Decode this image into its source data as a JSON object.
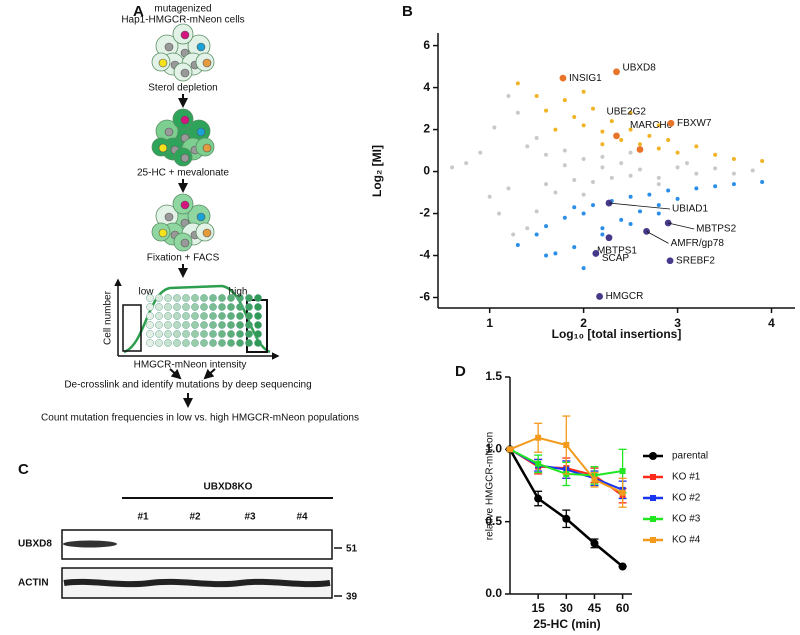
{
  "panel_labels": [
    "A",
    "B",
    "C",
    "D"
  ],
  "screen_flow": {
    "title_lines": [
      "mutagenized",
      "Hap1-HMGCR-mNeon cells"
    ],
    "steps": [
      "Sterol depletion",
      "25-HC + mevalonate",
      "Fixation + FACS"
    ],
    "histogram": {
      "y_label": "Cell number",
      "x_label": "HMGCR-mNeon intensity",
      "low": "low",
      "high": "high"
    },
    "after_steps": [
      "De-crosslink and identify mutations by deep sequencing",
      "Count mutation frequencies in low vs. high HMGCR-mNeon populations"
    ]
  },
  "blot": {
    "group_label": "UBXD8KO",
    "lanes": [
      "#1",
      "#2",
      "#3",
      "#4"
    ],
    "rows": [
      {
        "label": "UBXD8",
        "marker": 51
      },
      {
        "label": "ACTIN",
        "marker": 39
      }
    ]
  },
  "chart_data": [
    {
      "type": "scatter",
      "xlabel": "Log₁₀ [total insertions]",
      "ylabel": "Log₂ [MI]",
      "xlim": [
        0.45,
        4.25
      ],
      "ylim": [
        -6.5,
        6.6
      ],
      "xticks": [
        1,
        2,
        3,
        4
      ],
      "yticks": [
        -6,
        -4,
        -2,
        0,
        2,
        4,
        6
      ],
      "series": [
        {
          "color": "#c9c9c9",
          "x": [
            0.6,
            0.75,
            0.9,
            1.0,
            1.05,
            1.1,
            1.2,
            1.25,
            1.3,
            1.4,
            1.5,
            1.5,
            1.6,
            1.7,
            1.8,
            1.9,
            2.0,
            2.1,
            2.2,
            2.3,
            2.4,
            2.5,
            2.6,
            2.8,
            3.0,
            3.2,
            3.4,
            3.6,
            3.8,
            1.2,
            1.4,
            1.6,
            1.8,
            2.0,
            2.2,
            2.5,
            2.8,
            3.1
          ],
          "values": [
            0.2,
            0.4,
            0.9,
            -1.2,
            2.1,
            -2.0,
            3.6,
            -3.0,
            2.8,
            -2.7,
            1.6,
            -1.9,
            0.8,
            -1.0,
            0.3,
            -0.4,
            0.6,
            -0.5,
            0.2,
            -0.3,
            0.4,
            -0.2,
            0.1,
            -0.3,
            0.2,
            -0.1,
            0.15,
            -0.1,
            0.05,
            -0.8,
            1.2,
            -0.6,
            1.0,
            -1.1,
            0.7,
            0.9,
            -0.6,
            0.4
          ]
        },
        {
          "color": "#f0b323",
          "x": [
            1.3,
            1.5,
            1.6,
            1.8,
            1.9,
            2.0,
            2.1,
            2.2,
            2.3,
            2.4,
            2.5,
            2.6,
            2.7,
            2.8,
            2.9,
            3.0,
            3.2,
            3.4,
            3.6,
            3.9,
            1.7,
            2.0,
            2.2,
            2.5,
            2.8
          ],
          "values": [
            4.2,
            3.6,
            2.9,
            3.4,
            2.6,
            2.2,
            3.0,
            1.9,
            2.4,
            1.5,
            2.0,
            1.3,
            1.7,
            1.1,
            1.5,
            0.9,
            1.2,
            0.8,
            0.6,
            0.5,
            2.0,
            3.8,
            1.3,
            2.8,
            2.2
          ]
        },
        {
          "color": "#2a8fe8",
          "x": [
            1.3,
            1.5,
            1.6,
            1.8,
            1.9,
            2.0,
            2.1,
            2.2,
            2.3,
            2.4,
            2.5,
            2.6,
            2.7,
            2.8,
            2.9,
            3.0,
            3.2,
            3.4,
            3.6,
            3.9,
            1.7,
            2.0,
            2.2,
            2.5,
            2.8,
            1.6,
            1.9
          ],
          "values": [
            -3.5,
            -3.0,
            -2.6,
            -2.2,
            -3.6,
            -2.0,
            -1.6,
            -2.7,
            -1.4,
            -2.3,
            -1.2,
            -1.9,
            -1.1,
            -1.6,
            -0.9,
            -1.3,
            -0.8,
            -0.7,
            -0.6,
            -0.5,
            -3.9,
            -4.6,
            -3.0,
            -2.5,
            -2.0,
            -4.0,
            -1.7
          ]
        },
        {
          "color": "#e8742a",
          "x": [
            1.78,
            2.35,
            2.35,
            2.6,
            2.93
          ],
          "values": [
            4.45,
            4.75,
            1.7,
            1.05,
            2.3
          ],
          "labels": [
            "INSIG1",
            "UBXD8",
            "UBE2G2",
            "MARCH6",
            "FBXW7"
          ]
        },
        {
          "color": "#453a8a",
          "x": [
            2.27,
            2.9,
            2.67,
            2.27,
            2.13,
            2.92,
            2.17
          ],
          "values": [
            -1.5,
            -2.45,
            -2.85,
            -3.15,
            -3.9,
            -4.25,
            -5.95
          ],
          "labels": [
            "UBIAD1",
            "MBTPS2",
            "AMFR/gp78",
            "MBTPS1",
            "SCAP",
            "SREBF2",
            "HMGCR"
          ]
        }
      ]
    },
    {
      "type": "line",
      "xlabel": "25-HC (min)",
      "ylabel": "relative HMGCR-mNeon",
      "x": [
        0,
        15,
        30,
        45,
        60
      ],
      "xlim": [
        0,
        65
      ],
      "xticks": [
        15,
        30,
        45,
        60
      ],
      "ylim": [
        0,
        1.5
      ],
      "yticks": [
        {
          "value": 0,
          "label": "0.0"
        },
        0.5,
        {
          "value": 1,
          "label": "1.0"
        },
        {
          "value": 1.5,
          "label": "1.5"
        }
      ],
      "series": [
        {
          "name": "parental",
          "color": "#000000",
          "values": [
            1,
            0.66,
            0.52,
            0.35,
            0.19
          ],
          "errors": [
            0,
            0.05,
            0.06,
            0.03,
            0
          ]
        },
        {
          "name": "KO #1",
          "color": "#ff2a1a",
          "values": [
            1,
            0.88,
            0.87,
            0.82,
            0.68
          ],
          "errors": [
            0,
            0.05,
            0.07,
            0.05,
            0.05
          ]
        },
        {
          "name": "KO #2",
          "color": "#1a35f0",
          "values": [
            1,
            0.89,
            0.86,
            0.8,
            0.72
          ],
          "errors": [
            0,
            0.04,
            0.06,
            0.05,
            0.06
          ]
        },
        {
          "name": "KO #3",
          "color": "#22e622",
          "values": [
            1,
            0.9,
            0.83,
            0.82,
            0.85
          ],
          "errors": [
            0,
            0.06,
            0.08,
            0.06,
            0.15
          ]
        },
        {
          "name": "KO #4",
          "color": "#f39a1c",
          "values": [
            1,
            1.08,
            1.03,
            0.79,
            0.7
          ],
          "errors": [
            0,
            0.1,
            0.2,
            0.05,
            0.1
          ]
        }
      ]
    }
  ]
}
